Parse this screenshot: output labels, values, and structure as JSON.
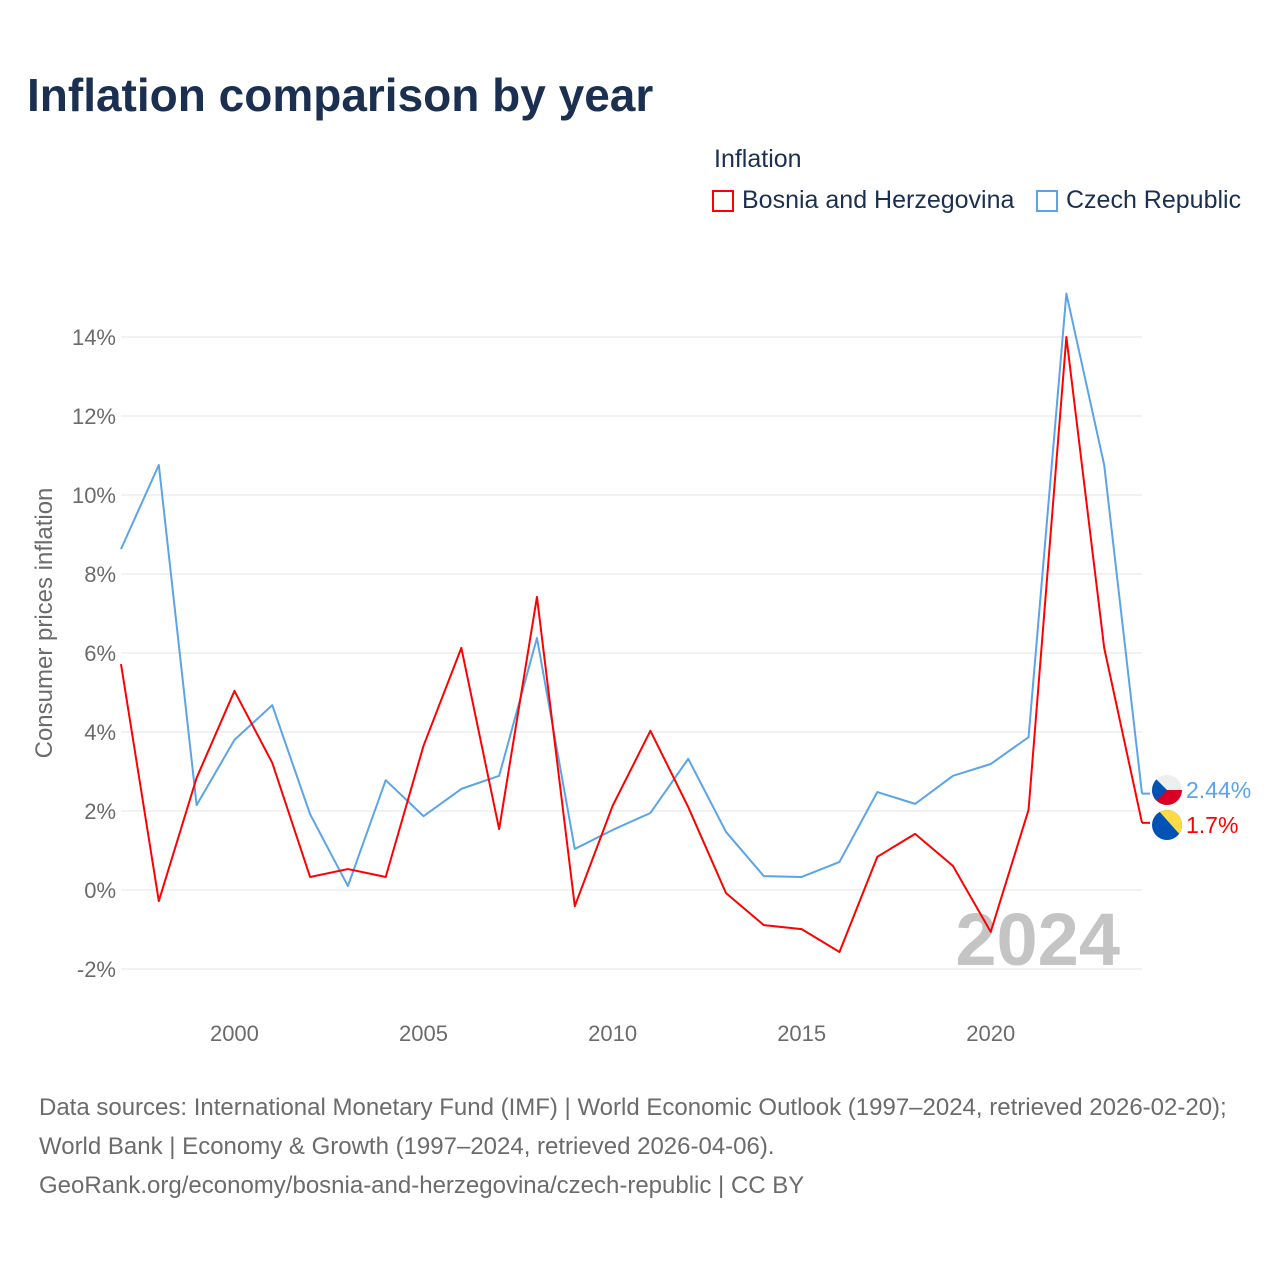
{
  "title": "Inflation comparison by year",
  "legend": {
    "title": "Inflation",
    "items": [
      "Bosnia and Herzegovina",
      "Czech Republic"
    ]
  },
  "source": {
    "line1": "Data sources: International Monetary Fund (IMF) | World Economic Outlook (1997–2024, retrieved 2026-02-20); World Bank | Economy & Growth (1997–2024, retrieved 2026-04-06).",
    "line2": "GeoRank.org/economy/bosnia-and-herzegovina/czech-republic | CC BY"
  },
  "watermark_year": "2024",
  "chart_data": {
    "type": "line",
    "title": "Inflation comparison by year",
    "xlabel": "",
    "ylabel": "Consumer prices inflation",
    "xlim": [
      1997,
      2024
    ],
    "ylim": [
      -3,
      15.5
    ],
    "x_ticks": [
      2000,
      2005,
      2010,
      2015,
      2020
    ],
    "x_tick_labels": [
      "2000",
      "2005",
      "2010",
      "2015",
      "2020"
    ],
    "y_ticks": [
      -2,
      0,
      2,
      4,
      6,
      8,
      10,
      12,
      14
    ],
    "y_tick_labels": [
      "-2%",
      "0%",
      "2%",
      "4%",
      "6%",
      "8%",
      "10%",
      "12%",
      "14%"
    ],
    "grid": true,
    "legend_position": "top-right",
    "x": [
      1997,
      1998,
      1999,
      2000,
      2001,
      2002,
      2003,
      2004,
      2005,
      2006,
      2007,
      2008,
      2009,
      2010,
      2011,
      2012,
      2013,
      2014,
      2015,
      2016,
      2017,
      2018,
      2019,
      2020,
      2021,
      2022,
      2023,
      2024
    ],
    "series": [
      {
        "name": "Bosnia and Herzegovina",
        "color": "#ff0000",
        "end_label": "1.7%",
        "values": [
          5.72,
          -0.28,
          2.84,
          5.04,
          3.22,
          0.33,
          0.53,
          0.33,
          3.65,
          6.13,
          1.54,
          7.42,
          -0.41,
          2.13,
          4.03,
          2.1,
          -0.08,
          -0.89,
          -0.99,
          -1.57,
          0.84,
          1.42,
          0.61,
          -1.06,
          2.03,
          14.0,
          6.13,
          1.7
        ]
      },
      {
        "name": "Czech Republic",
        "color": "#5ba4e8",
        "end_label": "2.44%",
        "values": [
          8.63,
          10.76,
          2.15,
          3.8,
          4.68,
          1.92,
          0.1,
          2.78,
          1.87,
          2.56,
          2.89,
          6.38,
          1.04,
          1.52,
          1.95,
          3.32,
          1.47,
          0.35,
          0.33,
          0.71,
          2.48,
          2.18,
          2.89,
          3.19,
          3.87,
          15.1,
          10.76,
          2.44
        ]
      }
    ]
  }
}
